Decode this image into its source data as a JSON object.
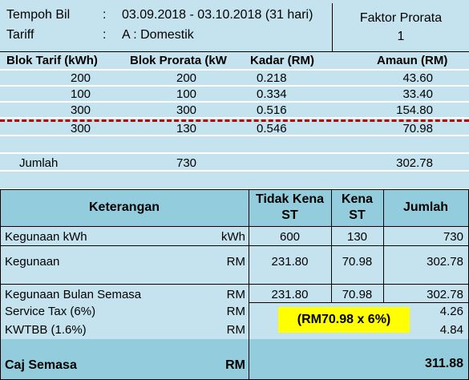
{
  "header": {
    "tempoh_label": "Tempoh Bil",
    "tempoh_colon": ":",
    "tempoh_value": "03.09.2018 - 03.10.2018 (31 hari)",
    "tariff_label": "Tariff",
    "tariff_colon": ":",
    "tariff_value": "A : Domestik",
    "faktor_label": "Faktor Prorata",
    "faktor_value": "1"
  },
  "block_table": {
    "headers": [
      "Blok Tarif (kWh)",
      "Blok Prorata (kW",
      "Kadar (RM)",
      "Amaun (RM)"
    ],
    "rows": [
      [
        "200",
        "200",
        "0.218",
        "43.60"
      ],
      [
        "100",
        "100",
        "0.334",
        "33.40"
      ],
      [
        "300",
        "300",
        "0.516",
        "154.80"
      ],
      [
        "300",
        "130",
        "0.546",
        "70.98"
      ]
    ],
    "jumlah_label": "Jumlah",
    "jumlah_prorata": "730",
    "jumlah_amaun": "302.78"
  },
  "summary_table": {
    "headers": {
      "keterangan": "Keterangan",
      "tidak_kena_1": "Tidak Kena",
      "tidak_kena_2": "ST",
      "kena_1": "Kena",
      "kena_2": "ST",
      "jumlah": "Jumlah"
    },
    "rows": [
      {
        "label": "Kegunaan kWh",
        "unit": "kWh",
        "tidak_kena": "600",
        "kena": "130",
        "jumlah": "730"
      },
      {
        "label": "Kegunaan",
        "unit": "RM",
        "tidak_kena": "231.80",
        "kena": "70.98",
        "jumlah": "302.78"
      },
      {
        "label": "Kegunaan Bulan Semasa",
        "unit": "RM",
        "tidak_kena": "231.80",
        "kena": "70.98",
        "jumlah": "302.78"
      },
      {
        "label": "Service Tax (6%)",
        "unit": "RM",
        "tidak_kena": "",
        "kena": "",
        "jumlah": "4.26"
      },
      {
        "label": "KWTBB (1.6%)",
        "unit": "RM",
        "tidak_kena": "",
        "kena": "",
        "jumlah": "4.84"
      },
      {
        "label": "Caj Semasa",
        "unit": "RM",
        "tidak_kena": "",
        "kena": "",
        "jumlah": "311.88"
      }
    ],
    "annotation": "(RM70.98 x 6%)"
  },
  "colors": {
    "light_blue": "#c5e3ef",
    "blue": "#93cddd",
    "dashed_line": "#c00000",
    "annotation_bg": "#ffff00"
  }
}
